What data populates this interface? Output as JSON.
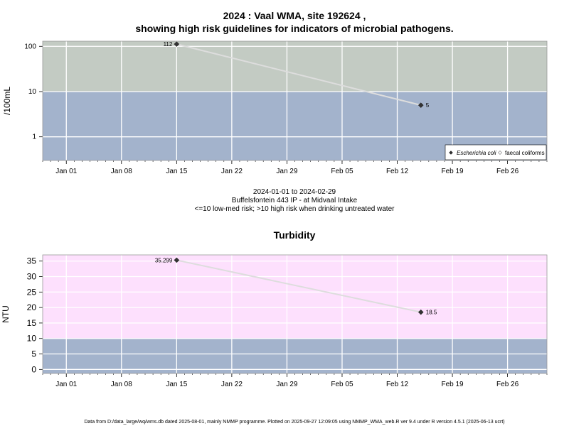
{
  "chart_data": [
    {
      "type": "line",
      "title_line1": "2024 : Vaal WMA, site 192624 ,",
      "title_line2": "showing high risk guidelines for indicators of microbial pathogens.",
      "ylabel": "/100mL",
      "y_scale": "log",
      "y_ticks": [
        "1",
        "10",
        "100"
      ],
      "x_ticks": [
        "Jan 01",
        "Jan 08",
        "Jan 15",
        "Jan 22",
        "Jan 29",
        "Feb 05",
        "Feb 12",
        "Feb 19",
        "Feb 26"
      ],
      "x_range": [
        "2023-12-29",
        "2024-03-02"
      ],
      "bands": [
        {
          "from": 0.3,
          "to": 10,
          "color": "#a3b3cc",
          "meaning": "low-med risk"
        },
        {
          "from": 10,
          "to": 130,
          "color": "#c3cbc3",
          "meaning": "high risk"
        }
      ],
      "legend": {
        "position": "bottom-right",
        "entries": [
          "Escherichia coli",
          "faecal coliforms"
        ]
      },
      "series": [
        {
          "name": "Escherichia coli",
          "color": "#dddddd",
          "points": [
            {
              "x": "2024-01-15",
              "y": 112,
              "label": "112"
            },
            {
              "x": "2024-02-15",
              "y": 5,
              "label": "5"
            }
          ]
        }
      ],
      "grid": true
    },
    {
      "type": "line",
      "title": "Turbidity",
      "ylabel": "NTU",
      "y_ticks": [
        "0",
        "5",
        "10",
        "15",
        "20",
        "25",
        "30",
        "35"
      ],
      "ylim": [
        -1.3,
        37
      ],
      "x_ticks": [
        "Jan 01",
        "Jan 08",
        "Jan 15",
        "Jan 22",
        "Jan 29",
        "Feb 05",
        "Feb 12",
        "Feb 19",
        "Feb 26"
      ],
      "x_range": [
        "2023-12-29",
        "2024-03-02"
      ],
      "bands": [
        {
          "from": -1.3,
          "to": 10,
          "color": "#a3b3cc",
          "meaning": "low-med risk"
        },
        {
          "from": 10,
          "to": 37,
          "color": "#fde0fd",
          "meaning": "high risk"
        }
      ],
      "series": [
        {
          "color": "#dddddd",
          "points": [
            {
              "x": "2024-01-15",
              "y": 35.299,
              "label": "35.299"
            },
            {
              "x": "2024-02-15",
              "y": 18.5,
              "label": "18.5"
            }
          ]
        }
      ],
      "grid": true
    }
  ],
  "subtitle": {
    "date_range": "2024-01-01 to 2024-02-29",
    "site": "Buffelsfontein 443 IP - at Midvaal Intake",
    "risk_note": "<=10 low-med risk; >10 high risk when drinking untreated water"
  },
  "footer": "Data from D:/data_large/wq/wms.db dated 2025-08-01, mainly NMMP programme. Plotted on 2025-09-27 12:09:05 using NMMP_WMA_web.R ver 9.4 under R version 4.5.1 (2025-06-13 ucrt)"
}
